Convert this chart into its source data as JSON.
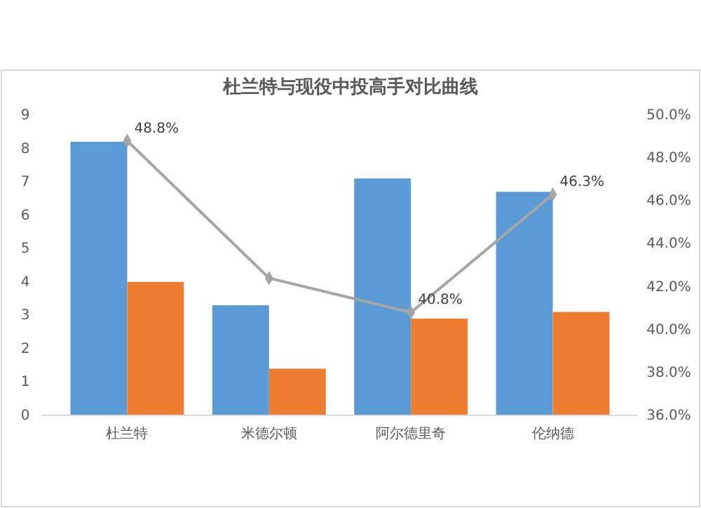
{
  "chart_data": {
    "type": "bar",
    "title": "杜兰特与现役中投高手对比曲线",
    "categories": [
      "杜兰特",
      "米德尔顿",
      "阿尔德里奇",
      "伦纳德"
    ],
    "series": [
      {
        "color": "#5b9bd5",
        "values": [
          8.2,
          3.3,
          7.1,
          6.7
        ]
      },
      {
        "color": "#ed7d31",
        "values": [
          4.0,
          1.4,
          2.9,
          3.1
        ]
      },
      {
        "type": "line",
        "axis": "y2",
        "color": "#a5a5a5",
        "marker": "diamond",
        "values": [
          48.8,
          42.4,
          40.8,
          46.3
        ],
        "value_labels": [
          "48.8%",
          null,
          "40.8%",
          "46.3%"
        ]
      }
    ],
    "ylim": [
      0,
      9
    ],
    "yticks": [
      0,
      1,
      2,
      3,
      4,
      5,
      6,
      7,
      8,
      9
    ],
    "y2lim": [
      36,
      50
    ],
    "y2ticks": [
      {
        "value": 36,
        "label": "36.0%"
      },
      {
        "value": 38,
        "label": "38.0%"
      },
      {
        "value": 40,
        "label": "40.0%"
      },
      {
        "value": 42,
        "label": "42.0%"
      },
      {
        "value": 44,
        "label": "44.0%"
      },
      {
        "value": 46,
        "label": "46.0%"
      },
      {
        "value": 48,
        "label": "48.0%"
      },
      {
        "value": 50,
        "label": "50.0%"
      }
    ],
    "grid": false
  }
}
